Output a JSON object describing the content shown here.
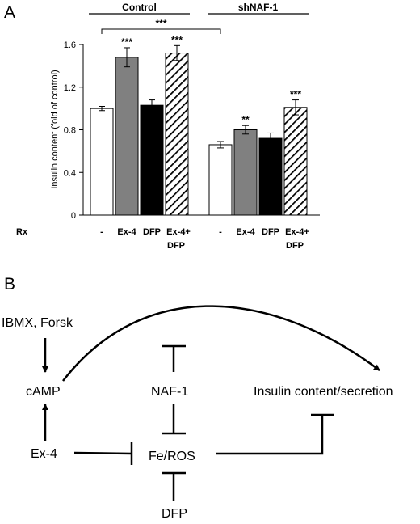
{
  "panels": {
    "a": "A",
    "b": "B"
  },
  "chart_data": {
    "type": "bar",
    "title": "",
    "xlabel": "",
    "ylabel": "Insulin content (fold of control)",
    "ylim": [
      0,
      1.6
    ],
    "yticks": [
      "0",
      "0.4",
      "0.8",
      "1.2",
      "1.6"
    ],
    "row_label": "Rx",
    "categories": [
      "-",
      "Ex-4",
      "DFP",
      "Ex-4+ DFP"
    ],
    "groups": [
      {
        "name": "Control",
        "values": [
          1.0,
          1.48,
          1.03,
          1.52
        ],
        "errors": [
          0.02,
          0.09,
          0.05,
          0.07
        ],
        "sig": [
          "",
          "***",
          "",
          "***"
        ]
      },
      {
        "name": "shNAF-1",
        "values": [
          0.66,
          0.8,
          0.72,
          1.01
        ],
        "errors": [
          0.03,
          0.04,
          0.05,
          0.07
        ],
        "sig": [
          "",
          "**",
          "",
          "***"
        ]
      }
    ],
    "bracket_sig": "***",
    "bar_styles": [
      "white",
      "#808080",
      "black",
      "hatched"
    ]
  },
  "diagram": {
    "nodes": {
      "ibmx": "IBMX, Forsk",
      "camp": "cAMP",
      "naf1": "NAF-1",
      "insulin": "Insulin content/secretion",
      "ex4": "Ex-4",
      "feros": "Fe/ROS",
      "dfp": "DFP"
    }
  }
}
